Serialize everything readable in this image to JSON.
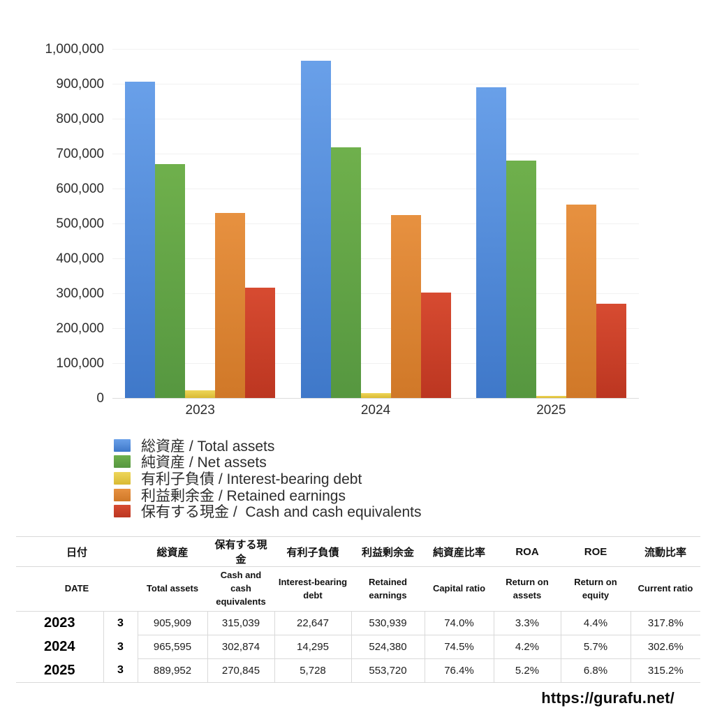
{
  "chart_data": {
    "type": "bar",
    "title": "",
    "categories": [
      "2023",
      "2024",
      "2025"
    ],
    "series": [
      {
        "name": "総資産 / Total assets",
        "color_top": "#69a0e9",
        "color_bottom": "#3f78c9",
        "values": [
          905909,
          965595,
          889952
        ]
      },
      {
        "name": "純資産 / Net assets",
        "color_top": "#6fb04c",
        "color_bottom": "#569740",
        "values": [
          670000,
          719000,
          680000
        ]
      },
      {
        "name": "有利子負債 / Interest-bearing debt",
        "color_top": "#eed65a",
        "color_bottom": "#d9ba33",
        "values": [
          22647,
          14295,
          5728
        ]
      },
      {
        "name": "利益剰余金 / Retained earnings",
        "color_top": "#e79140",
        "color_bottom": "#d07828",
        "values": [
          530939,
          524380,
          553720
        ]
      },
      {
        "name": "保有する現金 /  Cash and cash equivalents",
        "color_top": "#d74b31",
        "color_bottom": "#bc3621",
        "values": [
          315039,
          302874,
          270845
        ]
      }
    ],
    "xlabel": "",
    "ylabel": "",
    "ylim": [
      0,
      1000000
    ],
    "ytick_step": 100000,
    "grid": true,
    "legend_position": "bottom-left"
  },
  "table": {
    "header_jp": [
      "日付",
      "総資産",
      "保有する現金",
      "有利子負債",
      "利益剰余金",
      "純資産比率",
      "ROA",
      "ROE",
      "流動比率"
    ],
    "header_en": [
      "DATE",
      "Total assets",
      "Cash and cash equivalents",
      "Interest-bearing debt",
      "Retained earnings",
      "Capital ratio",
      "Return on assets",
      "Return on equity",
      "Current ratio"
    ],
    "rows": [
      {
        "year": "2023",
        "month": "3",
        "cells": [
          "905,909",
          "315,039",
          "22,647",
          "530,939",
          "74.0%",
          "3.3%",
          "4.4%",
          "317.8%"
        ]
      },
      {
        "year": "2024",
        "month": "3",
        "cells": [
          "965,595",
          "302,874",
          "14,295",
          "524,380",
          "74.5%",
          "4.2%",
          "5.7%",
          "302.6%"
        ]
      },
      {
        "year": "2025",
        "month": "3",
        "cells": [
          "889,952",
          "270,845",
          "5,728",
          "553,720",
          "76.4%",
          "5.2%",
          "6.8%",
          "315.2%"
        ]
      }
    ]
  },
  "footer": {
    "url": "https://gurafu.net/"
  },
  "style": {
    "grid_color": "#f1f1f1",
    "axis_color": "#dcdcdc",
    "table_border_color": "#d9d9d9"
  }
}
